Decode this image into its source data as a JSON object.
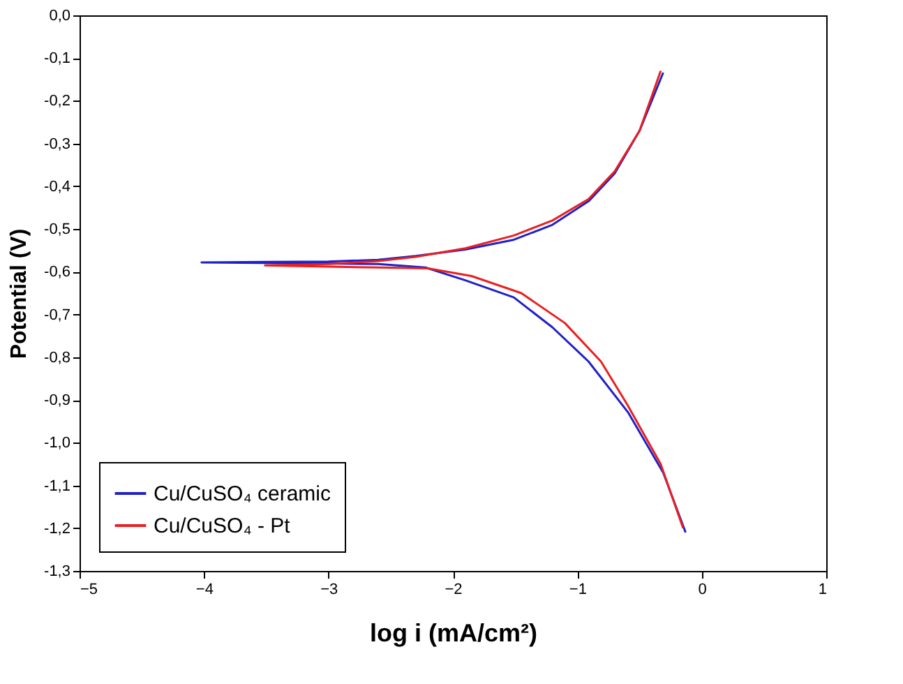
{
  "chart_data": {
    "type": "line",
    "xlabel": "log i (mA/cm²)",
    "ylabel": "Potential (V)",
    "xlim": [
      -5,
      1
    ],
    "xticks": [
      -5,
      -4,
      -3,
      -2,
      -1,
      0,
      1
    ],
    "ylim": [
      -1.3,
      0.0
    ],
    "yticks": [
      {
        "value": 0.0,
        "label": "0,0"
      },
      {
        "value": -0.1,
        "label": "-0,1"
      },
      {
        "value": -0.2,
        "label": "-0,2"
      },
      {
        "value": -0.3,
        "label": "-0,3"
      },
      {
        "value": -0.4,
        "label": "-0,4"
      },
      {
        "value": -0.5,
        "label": "-0,5"
      },
      {
        "value": -0.6,
        "label": "-0,6"
      },
      {
        "value": -0.7,
        "label": "-0,7"
      },
      {
        "value": -0.8,
        "label": "-0,8"
      },
      {
        "value": -0.9,
        "label": "-0,9"
      },
      {
        "value": -1.0,
        "label": "-1,0"
      },
      {
        "value": -1.1,
        "label": "-1,1"
      },
      {
        "value": -1.2,
        "label": "-1,2"
      },
      {
        "value": -1.3,
        "label": "-1,3"
      }
    ],
    "grid": false,
    "legend": "bottom left",
    "line_style": "solid",
    "marker": "none",
    "series": [
      {
        "name": "Cu/CuSO₄ ceramic",
        "color": "#2020c8",
        "x": [
          -0.13,
          -0.31,
          -0.59,
          -0.91,
          -1.2,
          -1.51,
          -1.9,
          -2.22,
          -2.6,
          -3.2,
          -4.02,
          -3.5,
          -3.0,
          -2.6,
          -2.3,
          -1.9,
          -1.51,
          -1.2,
          -0.91,
          -0.7,
          -0.5,
          -0.31
        ],
        "values": [
          -1.21,
          -1.07,
          -0.93,
          -0.81,
          -0.73,
          -0.66,
          -0.62,
          -0.59,
          -0.582,
          -0.58,
          -0.578,
          -0.577,
          -0.576,
          -0.572,
          -0.563,
          -0.548,
          -0.525,
          -0.49,
          -0.435,
          -0.37,
          -0.27,
          -0.134
        ]
      },
      {
        "name": "Cu/CuSO₄ - Pt",
        "color": "#e82020",
        "x": [
          -0.15,
          -0.33,
          -0.6,
          -0.81,
          -1.1,
          -1.45,
          -1.85,
          -2.2,
          -2.58,
          -3.0,
          -3.51,
          -3.0,
          -2.6,
          -2.3,
          -1.9,
          -1.51,
          -1.2,
          -0.91,
          -0.7,
          -0.5,
          -0.33
        ],
        "values": [
          -1.2,
          -1.05,
          -0.91,
          -0.81,
          -0.72,
          -0.65,
          -0.61,
          -0.592,
          -0.59,
          -0.588,
          -0.585,
          -0.582,
          -0.575,
          -0.565,
          -0.545,
          -0.515,
          -0.48,
          -0.43,
          -0.365,
          -0.27,
          -0.13
        ]
      }
    ]
  }
}
